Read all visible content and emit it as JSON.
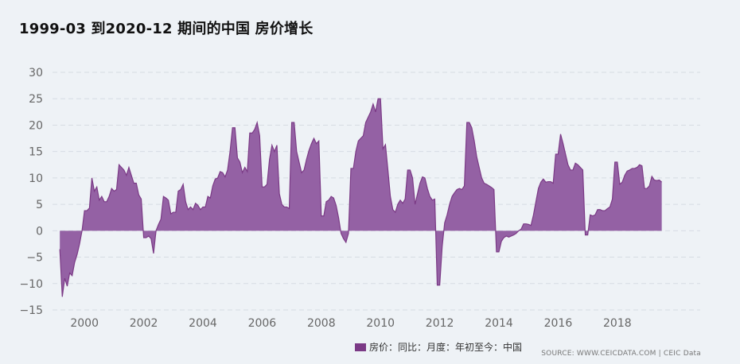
{
  "chart_data": {
    "type": "area",
    "title": "1999-03 到2020-12 期间的中国 房价增长",
    "series": [
      {
        "name": "房价：同比：月度：年初至今：中国",
        "color": "#7b3a86",
        "fill": "#9461a4",
        "points": [
          [
            1999.167,
            -3.5
          ],
          [
            1999.25,
            -12.5
          ],
          [
            1999.333,
            -9
          ],
          [
            1999.417,
            -10.5
          ],
          [
            1999.5,
            -8
          ],
          [
            1999.583,
            -8.5
          ],
          [
            1999.667,
            -6
          ],
          [
            1999.75,
            -4.5
          ],
          [
            1999.833,
            -2.5
          ],
          [
            1999.917,
            0
          ],
          [
            2000.0,
            3.8
          ],
          [
            2000.083,
            3.8
          ],
          [
            2000.167,
            4.3
          ],
          [
            2000.25,
            10
          ],
          [
            2000.333,
            7.5
          ],
          [
            2000.417,
            8.3
          ],
          [
            2000.5,
            5.8
          ],
          [
            2000.583,
            6.5
          ],
          [
            2000.667,
            5.5
          ],
          [
            2000.75,
            5.5
          ],
          [
            2000.833,
            6.5
          ],
          [
            2000.917,
            8
          ],
          [
            2001.0,
            7.5
          ],
          [
            2001.083,
            7.8
          ],
          [
            2001.167,
            12.5
          ],
          [
            2001.25,
            12
          ],
          [
            2001.333,
            11.5
          ],
          [
            2001.417,
            10.5
          ],
          [
            2001.5,
            12
          ],
          [
            2001.583,
            10.5
          ],
          [
            2001.667,
            9
          ],
          [
            2001.75,
            9
          ],
          [
            2001.833,
            6.8
          ],
          [
            2001.917,
            6
          ],
          [
            2002.0,
            -1.3
          ],
          [
            2002.083,
            -1.3
          ],
          [
            2002.167,
            -1
          ],
          [
            2002.25,
            -1.5
          ],
          [
            2002.333,
            -4.3
          ],
          [
            2002.417,
            0
          ],
          [
            2002.5,
            1.2
          ],
          [
            2002.583,
            2.2
          ],
          [
            2002.667,
            6.5
          ],
          [
            2002.75,
            6.2
          ],
          [
            2002.833,
            5.8
          ],
          [
            2002.917,
            3.2
          ],
          [
            2003.0,
            3.5
          ],
          [
            2003.083,
            3.5
          ],
          [
            2003.167,
            7.5
          ],
          [
            2003.25,
            7.8
          ],
          [
            2003.333,
            8.8
          ],
          [
            2003.417,
            5.5
          ],
          [
            2003.5,
            4
          ],
          [
            2003.583,
            4.5
          ],
          [
            2003.667,
            4
          ],
          [
            2003.75,
            5.2
          ],
          [
            2003.833,
            4.8
          ],
          [
            2003.917,
            4
          ],
          [
            2004.0,
            4.5
          ],
          [
            2004.083,
            4.5
          ],
          [
            2004.167,
            6.5
          ],
          [
            2004.25,
            6.2
          ],
          [
            2004.333,
            8.5
          ],
          [
            2004.417,
            9.8
          ],
          [
            2004.5,
            10
          ],
          [
            2004.583,
            11.2
          ],
          [
            2004.667,
            11
          ],
          [
            2004.75,
            10.2
          ],
          [
            2004.833,
            11.5
          ],
          [
            2004.917,
            15
          ],
          [
            2005.0,
            19.5
          ],
          [
            2005.083,
            19.5
          ],
          [
            2005.167,
            13.8
          ],
          [
            2005.25,
            13
          ],
          [
            2005.333,
            11
          ],
          [
            2005.417,
            12
          ],
          [
            2005.5,
            11.2
          ],
          [
            2005.583,
            18.5
          ],
          [
            2005.667,
            18.5
          ],
          [
            2005.75,
            19.2
          ],
          [
            2005.833,
            20.5
          ],
          [
            2005.917,
            18
          ],
          [
            2006.0,
            8.3
          ],
          [
            2006.083,
            8.3
          ],
          [
            2006.167,
            8.8
          ],
          [
            2006.25,
            13.5
          ],
          [
            2006.333,
            16.2
          ],
          [
            2006.417,
            15
          ],
          [
            2006.5,
            16.2
          ],
          [
            2006.583,
            7
          ],
          [
            2006.667,
            5
          ],
          [
            2006.75,
            4.5
          ],
          [
            2006.833,
            4.5
          ],
          [
            2006.917,
            4.2
          ],
          [
            2007.0,
            20.5
          ],
          [
            2007.083,
            20.5
          ],
          [
            2007.167,
            15
          ],
          [
            2007.25,
            13
          ],
          [
            2007.333,
            11
          ],
          [
            2007.417,
            11.5
          ],
          [
            2007.5,
            13.5
          ],
          [
            2007.583,
            15.2
          ],
          [
            2007.667,
            16.5
          ],
          [
            2007.75,
            17.5
          ],
          [
            2007.833,
            16.5
          ],
          [
            2007.917,
            17
          ],
          [
            2008.0,
            2.8
          ],
          [
            2008.083,
            2.8
          ],
          [
            2008.167,
            5.5
          ],
          [
            2008.25,
            5.8
          ],
          [
            2008.333,
            6.5
          ],
          [
            2008.417,
            6.2
          ],
          [
            2008.5,
            4.8
          ],
          [
            2008.583,
            2.5
          ],
          [
            2008.667,
            -0.5
          ],
          [
            2008.75,
            -1.5
          ],
          [
            2008.833,
            -2.2
          ],
          [
            2008.917,
            -0.5
          ],
          [
            2009.0,
            11.8
          ],
          [
            2009.083,
            11.8
          ],
          [
            2009.167,
            15
          ],
          [
            2009.25,
            17
          ],
          [
            2009.333,
            17.5
          ],
          [
            2009.417,
            18
          ],
          [
            2009.5,
            20.5
          ],
          [
            2009.583,
            21.5
          ],
          [
            2009.667,
            22.5
          ],
          [
            2009.75,
            24
          ],
          [
            2009.833,
            22.5
          ],
          [
            2009.917,
            25
          ],
          [
            2010.0,
            25
          ],
          [
            2010.083,
            15.5
          ],
          [
            2010.167,
            16.3
          ],
          [
            2010.25,
            11.5
          ],
          [
            2010.333,
            6.5
          ],
          [
            2010.417,
            4
          ],
          [
            2010.5,
            3.5
          ],
          [
            2010.583,
            5
          ],
          [
            2010.667,
            5.8
          ],
          [
            2010.75,
            5.2
          ],
          [
            2010.833,
            6
          ],
          [
            2010.917,
            11.5
          ],
          [
            2011.0,
            11.5
          ],
          [
            2011.083,
            10
          ],
          [
            2011.167,
            5
          ],
          [
            2011.25,
            7
          ],
          [
            2011.333,
            9
          ],
          [
            2011.417,
            10.2
          ],
          [
            2011.5,
            10
          ],
          [
            2011.583,
            8
          ],
          [
            2011.667,
            6.5
          ],
          [
            2011.75,
            5.8
          ],
          [
            2011.833,
            6
          ],
          [
            2011.917,
            -10.3
          ],
          [
            2012.0,
            -10.3
          ],
          [
            2012.083,
            -3
          ],
          [
            2012.167,
            1.5
          ],
          [
            2012.25,
            3
          ],
          [
            2012.333,
            5
          ],
          [
            2012.417,
            6.5
          ],
          [
            2012.5,
            7.2
          ],
          [
            2012.583,
            7.8
          ],
          [
            2012.667,
            8
          ],
          [
            2012.75,
            7.8
          ],
          [
            2012.833,
            8.5
          ],
          [
            2012.917,
            20.5
          ],
          [
            2013.0,
            20.5
          ],
          [
            2013.083,
            19.5
          ],
          [
            2013.167,
            17
          ],
          [
            2013.25,
            14
          ],
          [
            2013.333,
            12
          ],
          [
            2013.417,
            10
          ],
          [
            2013.5,
            9
          ],
          [
            2013.583,
            8.8
          ],
          [
            2013.667,
            8.5
          ],
          [
            2013.75,
            8.2
          ],
          [
            2013.833,
            7.8
          ],
          [
            2013.917,
            -4
          ],
          [
            2014.0,
            -4
          ],
          [
            2014.083,
            -2
          ],
          [
            2014.167,
            -1.3
          ],
          [
            2014.25,
            -1
          ],
          [
            2014.333,
            -1.2
          ],
          [
            2014.417,
            -1
          ],
          [
            2014.5,
            -0.8
          ],
          [
            2014.583,
            -0.5
          ],
          [
            2014.667,
            0
          ],
          [
            2014.75,
            0.3
          ],
          [
            2014.833,
            1.3
          ],
          [
            2014.917,
            1.3
          ],
          [
            2015.0,
            1.2
          ],
          [
            2015.083,
            1
          ],
          [
            2015.167,
            3
          ],
          [
            2015.25,
            5.5
          ],
          [
            2015.333,
            8
          ],
          [
            2015.417,
            9.2
          ],
          [
            2015.5,
            9.8
          ],
          [
            2015.583,
            9.2
          ],
          [
            2015.667,
            9.3
          ],
          [
            2015.75,
            9.3
          ],
          [
            2015.833,
            9
          ],
          [
            2015.917,
            14.5
          ],
          [
            2016.0,
            14.5
          ],
          [
            2016.083,
            18.3
          ],
          [
            2016.167,
            16.5
          ],
          [
            2016.25,
            14.5
          ],
          [
            2016.333,
            12.5
          ],
          [
            2016.417,
            11.5
          ],
          [
            2016.5,
            11.5
          ],
          [
            2016.583,
            12.8
          ],
          [
            2016.667,
            12.5
          ],
          [
            2016.75,
            12
          ],
          [
            2016.833,
            11.5
          ],
          [
            2016.917,
            -0.8
          ],
          [
            2017.0,
            -0.8
          ],
          [
            2017.083,
            3
          ],
          [
            2017.167,
            2.8
          ],
          [
            2017.25,
            3
          ],
          [
            2017.333,
            4
          ],
          [
            2017.417,
            4
          ],
          [
            2017.5,
            3.8
          ],
          [
            2017.583,
            3.8
          ],
          [
            2017.667,
            4.2
          ],
          [
            2017.75,
            4.5
          ],
          [
            2017.833,
            6
          ],
          [
            2017.917,
            13
          ],
          [
            2018.0,
            13
          ],
          [
            2018.083,
            8.8
          ],
          [
            2018.167,
            9.2
          ],
          [
            2018.25,
            10.5
          ],
          [
            2018.333,
            11.3
          ],
          [
            2018.417,
            11.5
          ],
          [
            2018.5,
            11.8
          ],
          [
            2018.583,
            11.8
          ],
          [
            2018.667,
            12
          ],
          [
            2018.75,
            12.5
          ],
          [
            2018.833,
            12.3
          ],
          [
            2018.917,
            8
          ],
          [
            2019.0,
            8
          ],
          [
            2019.083,
            8.5
          ],
          [
            2019.167,
            10.3
          ],
          [
            2019.25,
            9.6
          ],
          [
            2019.333,
            9.5
          ],
          [
            2019.417,
            9.6
          ],
          [
            2019.5,
            9.2
          ]
        ]
      }
    ],
    "yticks": [
      30,
      25,
      20,
      15,
      10,
      5,
      0,
      -5,
      -10,
      -15
    ],
    "xticks": [
      2000,
      2002,
      2004,
      2006,
      2008,
      2010,
      2012,
      2014,
      2016,
      2018
    ],
    "ylim": [
      -15,
      30
    ],
    "xlim": [
      1998.92,
      2020.8
    ],
    "grid": true,
    "legend": "bottom-center",
    "source": "SOURCE: WWW.CEICDATA.COM | CEIC Data"
  }
}
